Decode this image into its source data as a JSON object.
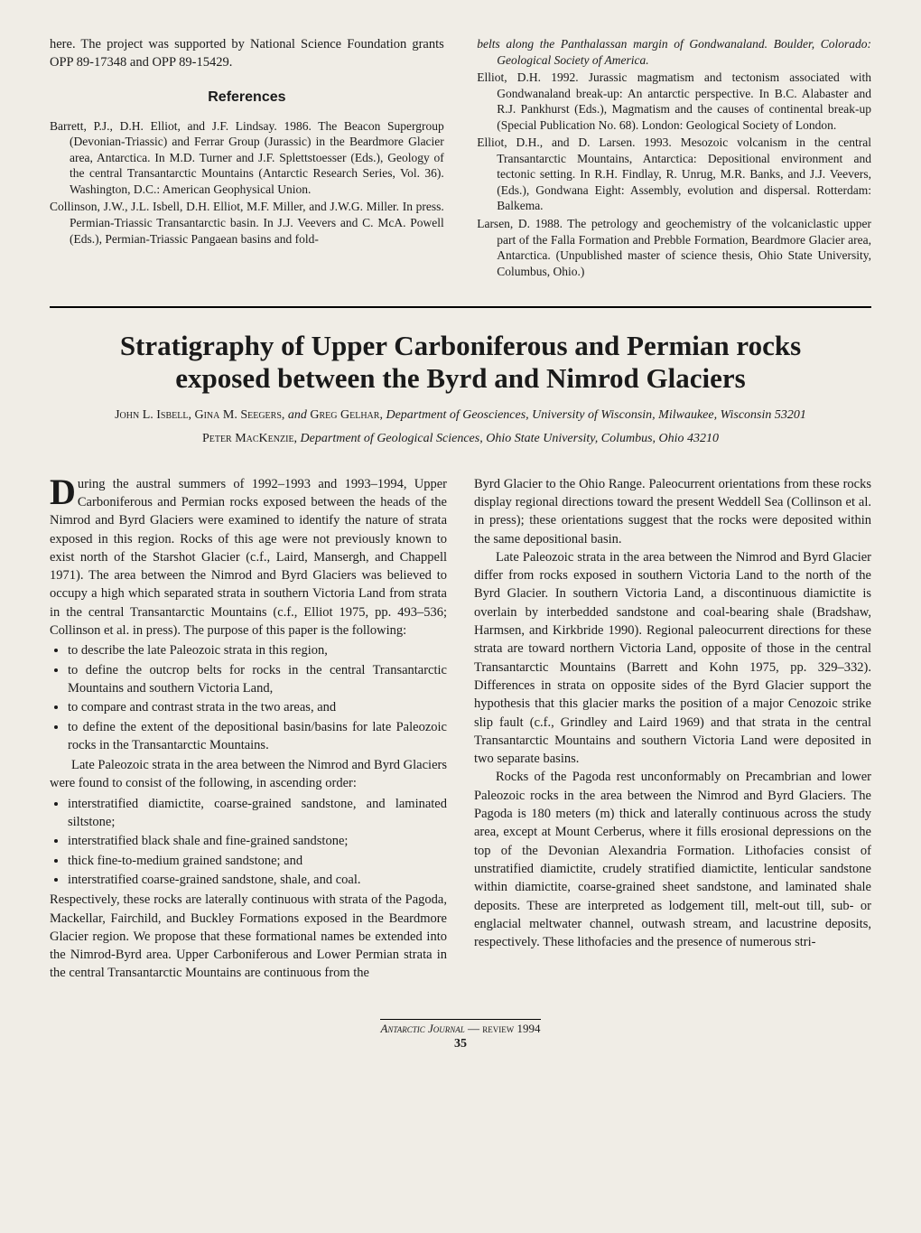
{
  "top": {
    "intro": "here. The project was supported by National Science Foundation grants OPP 89-17348 and OPP 89-15429.",
    "refs_heading": "References",
    "refs_left": [
      "Barrett, P.J., D.H. Elliot, and J.F. Lindsay. 1986. The Beacon Supergroup (Devonian-Triassic) and Ferrar Group (Jurassic) in the Beardmore Glacier area, Antarctica. In M.D. Turner and J.F. Splettstoesser (Eds.), Geology of the central Transantarctic Mountains (Antarctic Research Series, Vol. 36). Washington, D.C.: American Geophysical Union.",
      "Collinson, J.W., J.L. Isbell, D.H. Elliot, M.F. Miller, and J.W.G. Miller. In press. Permian-Triassic Transantarctic basin. In J.J. Veevers and C. McA. Powell (Eds.), Permian-Triassic Pangaean basins and fold-"
    ],
    "refs_right": [
      "belts along the Panthalassan margin of Gondwanaland. Boulder, Colorado: Geological Society of America.",
      "Elliot, D.H. 1992. Jurassic magmatism and tectonism associated with Gondwanaland break-up: An antarctic perspective. In B.C. Alabaster and R.J. Pankhurst (Eds.), Magmatism and the causes of continental break-up (Special Publication No. 68). London: Geological Society of London.",
      "Elliot, D.H., and D. Larsen. 1993. Mesozoic volcanism in the central Transantarctic Mountains, Antarctica: Depositional environment and tectonic setting. In R.H. Findlay, R. Unrug, M.R. Banks, and J.J. Veevers, (Eds.), Gondwana Eight: Assembly, evolution and dispersal. Rotterdam: Balkema.",
      "Larsen, D. 1988. The petrology and geochemistry of the volcaniclastic upper part of the Falla Formation and Prebble Formation, Beardmore Glacier area, Antarctica. (Unpublished master of science thesis, Ohio State University, Columbus, Ohio.)"
    ]
  },
  "article": {
    "title_l1": "Stratigraphy of Upper Carboniferous and Permian rocks",
    "title_l2": "exposed between the Byrd and Nimrod Glaciers",
    "authors1_names": "John L. Isbell, Gina M. Seegers, ",
    "authors1_and": "and ",
    "authors1_name3": "Greg Gelhar, ",
    "authors1_aff": "Department of Geosciences, University of Wisconsin, Milwaukee, Wisconsin 53201",
    "authors2_name": "Peter MacKenzie, ",
    "authors2_aff": "Department of Geological Sciences, Ohio State University, Columbus, Ohio 43210"
  },
  "body": {
    "left": {
      "dropcap": "D",
      "p1": "uring the austral summers of 1992–1993 and 1993–1994, Upper Carboniferous and Permian rocks exposed between the heads of the Nimrod and Byrd Glaciers were examined to identify the nature of strata exposed in this region. Rocks of this age were not previously known to exist north of the Starshot Glacier (c.f., Laird, Mansergh, and Chappell 1971). The area between the Nimrod and Byrd Glaciers was believed to occupy a high which separated strata in southern Victoria Land from strata in the central Transantarctic Mountains (c.f., Elliot 1975, pp. 493–536; Collinson et al. in press). The purpose of this paper is the following:",
      "list1": [
        "to describe the late Paleozoic strata in this region,",
        "to define the outcrop belts for rocks in the central Transantarctic Mountains and southern Victoria Land,",
        "to compare and contrast strata in the two areas, and",
        "to define the extent of the depositional basin/basins for late Paleozoic rocks in the Transantarctic Mountains."
      ],
      "p2": "Late Paleozoic strata in the area between the Nimrod and Byrd Glaciers were found to consist of the following, in ascending order:",
      "list2": [
        "interstratified diamictite, coarse-grained sandstone, and laminated siltstone;",
        "interstratified black shale and fine-grained sandstone;",
        "thick fine-to-medium grained sandstone; and",
        "interstratified coarse-grained sandstone, shale, and coal."
      ],
      "p3": "Respectively, these rocks are laterally continuous with strata of the Pagoda, Mackellar, Fairchild, and Buckley Formations exposed in the Beardmore Glacier region. We propose that these formational names be extended into the Nimrod-Byrd area. Upper Carboniferous and Lower Permian strata in the central Transantarctic Mountains are continuous from the"
    },
    "right": {
      "p1": "Byrd Glacier to the Ohio Range. Paleocurrent orientations from these rocks display regional directions toward the present Weddell Sea (Collinson et al. in press); these orientations suggest that the rocks were deposited within the same depositional basin.",
      "p2": "Late Paleozoic strata in the area between the Nimrod and Byrd Glacier differ from rocks exposed in southern Victoria Land to the north of the Byrd Glacier. In southern Victoria Land, a discontinuous diamictite is overlain by interbedded sandstone and coal-bearing shale (Bradshaw, Harmsen, and Kirkbride 1990). Regional paleocurrent directions for these strata are toward northern Victoria Land, opposite of those in the central Transantarctic Mountains (Barrett and Kohn 1975, pp. 329–332). Differences in strata on opposite sides of the Byrd Glacier support the hypothesis that this glacier marks the position of a major Cenozoic strike slip fault (c.f., Grindley and Laird 1969) and that strata in the central Transantarctic Mountains and southern Victoria Land were deposited in two separate basins.",
      "p3": "Rocks of the Pagoda rest unconformably on Precambrian and lower Paleozoic rocks in the area between the Nimrod and Byrd Glaciers. The Pagoda is 180 meters (m) thick and laterally continuous across the study area, except at Mount Cerberus, where it fills erosional depressions on the top of the Devonian Alexandria Formation. Lithofacies consist of unstratified diamictite, crudely stratified diamictite, lenticular sandstone within diamictite, coarse-grained sheet sandstone, and laminated shale deposits. These are interpreted as lodgement till, melt-out till, sub- or englacial meltwater channel, outwash stream, and lacustrine deposits, respectively. These lithofacies and the presence of numerous stri-"
    }
  },
  "footer": {
    "journal": "Antarctic Journal",
    "rest": " — review 1994",
    "pagenum": "35"
  }
}
